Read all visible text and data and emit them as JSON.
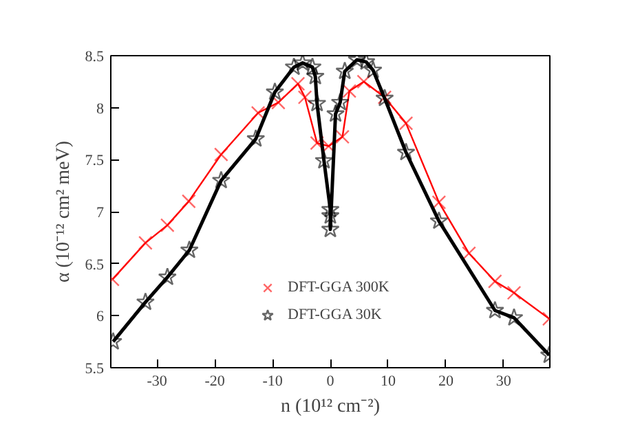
{
  "chart_data": {
    "type": "line",
    "xlabel": "n (10¹² cm⁻²)",
    "ylabel": "α (10⁻¹² cm² meV)",
    "xlim": [
      -38,
      38
    ],
    "ylim": [
      5.5,
      8.5
    ],
    "xticks": [
      -30,
      -20,
      -10,
      0,
      10,
      20,
      30
    ],
    "yticks": [
      5.5,
      6,
      6.5,
      7,
      7.5,
      8,
      8.5
    ],
    "grid": false,
    "legend": "bottom right",
    "series": [
      {
        "name": "DFT-GGA 300K",
        "color": "#ff0000",
        "marker": "cross",
        "x": [
          -37.7,
          -32.0,
          -28.2,
          -24.5,
          -18.9,
          -12.5,
          -9.0,
          -5.6,
          -4.4,
          -2.3,
          -0.3,
          2.1,
          3.3,
          5.8,
          9.4,
          13.1,
          18.8,
          24.0,
          28.5,
          31.8,
          37.9
        ],
        "values": [
          6.35,
          6.7,
          6.87,
          7.1,
          7.55,
          7.95,
          8.05,
          8.23,
          8.1,
          7.66,
          7.63,
          7.72,
          8.16,
          8.25,
          8.1,
          7.85,
          7.09,
          6.6,
          6.33,
          6.22,
          5.97
        ]
      },
      {
        "name": "DFT-GGA 30K",
        "color": "#000000",
        "marker": "star",
        "x": [
          -37.6,
          -32.0,
          -28.2,
          -24.4,
          -18.9,
          -12.9,
          -9.6,
          -6.3,
          -4.8,
          -3.1,
          -2.6,
          -2.3,
          -1.1,
          0,
          0,
          0,
          0.9,
          1.7,
          2.5,
          4.6,
          6.2,
          7.4,
          9.4,
          13.1,
          18.8,
          28.5,
          31.8,
          37.9
        ],
        "values": [
          5.75,
          6.13,
          6.37,
          6.63,
          7.3,
          7.7,
          8.15,
          8.39,
          8.43,
          8.39,
          8.3,
          8.04,
          7.49,
          7.02,
          6.96,
          6.83,
          7.94,
          8.05,
          8.35,
          8.46,
          8.44,
          8.36,
          8.09,
          7.57,
          6.91,
          6.05,
          5.98,
          5.62
        ]
      }
    ]
  }
}
